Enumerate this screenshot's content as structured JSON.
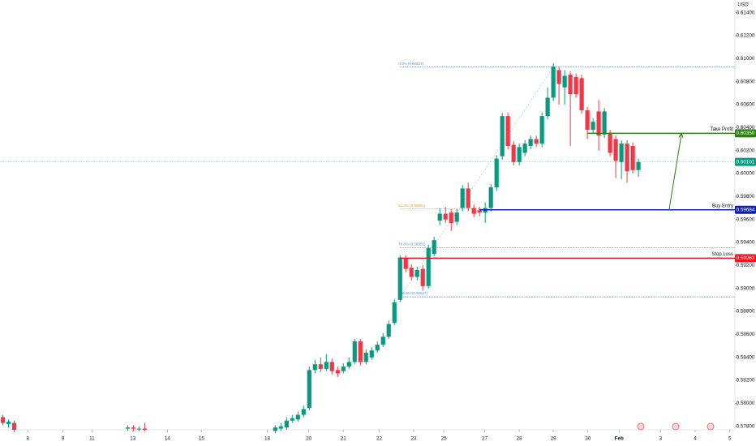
{
  "chart_data": {
    "type": "candlestick",
    "currency": "USD",
    "up_color": "#089981",
    "down_color": "#f23645",
    "xlim": [
      -0.5,
      129
    ],
    "ylim": [
      0.5777,
      0.6151
    ],
    "yticks": [
      {
        "value": 0.578,
        "label": "0.57800"
      },
      {
        "value": 0.58,
        "label": "0.58000"
      },
      {
        "value": 0.582,
        "label": "0.58200"
      },
      {
        "value": 0.584,
        "label": "0.58400"
      },
      {
        "value": 0.586,
        "label": "0.58600"
      },
      {
        "value": 0.588,
        "label": "0.58800"
      },
      {
        "value": 0.59,
        "label": "0.59000"
      },
      {
        "value": 0.592,
        "label": "0.59200"
      },
      {
        "value": 0.594,
        "label": "0.59400"
      },
      {
        "value": 0.596,
        "label": "0.59600"
      },
      {
        "value": 0.598,
        "label": "0.59800"
      },
      {
        "value": 0.6,
        "label": "0.60000"
      },
      {
        "value": 0.602,
        "label": "0.60200"
      },
      {
        "value": 0.604,
        "label": "0.60400"
      },
      {
        "value": 0.606,
        "label": "0.60600"
      },
      {
        "value": 0.608,
        "label": "0.60800"
      },
      {
        "value": 0.61,
        "label": "0.61000"
      },
      {
        "value": 0.612,
        "label": "0.61200"
      },
      {
        "value": 0.614,
        "label": "0.61400"
      }
    ],
    "xticks": [
      {
        "value": 4.4,
        "label": "8"
      },
      {
        "value": 10.6,
        "label": "9"
      },
      {
        "value": 15.7,
        "label": "11"
      },
      {
        "value": 22.9,
        "label": "13"
      },
      {
        "value": 29,
        "label": "14"
      },
      {
        "value": 35,
        "label": "15"
      },
      {
        "value": 46.6,
        "label": "18"
      },
      {
        "value": 53.9,
        "label": "20"
      },
      {
        "value": 60,
        "label": "21"
      },
      {
        "value": 66.3,
        "label": "22"
      },
      {
        "value": 72.4,
        "label": "23"
      },
      {
        "value": 77.7,
        "label": "25"
      },
      {
        "value": 84.9,
        "label": "27"
      },
      {
        "value": 91,
        "label": "28"
      },
      {
        "value": 97,
        "label": "29"
      },
      {
        "value": 103.1,
        "label": "30"
      },
      {
        "value": 108.6,
        "label": "Feb"
      },
      {
        "value": 115.9,
        "label": "3"
      },
      {
        "value": 122,
        "label": "4"
      },
      {
        "value": 128.1,
        "label": "5"
      }
    ],
    "x": [
      0,
      1,
      2,
      22,
      23,
      24,
      25,
      48,
      49,
      50,
      51,
      52,
      53,
      54,
      55,
      56,
      57,
      58,
      59,
      60,
      61,
      62,
      63,
      64,
      65,
      66,
      67,
      68,
      69,
      70,
      71,
      72,
      73,
      74,
      75,
      76,
      77,
      78,
      79,
      80,
      81,
      82,
      83,
      84,
      85,
      86,
      87,
      88,
      89,
      90,
      91,
      92,
      93,
      94,
      95,
      96,
      97,
      98,
      99,
      100,
      101,
      102,
      103,
      104,
      105,
      106,
      107,
      108,
      109,
      110,
      111,
      112
    ],
    "open": [
      0.5788,
      0.5782,
      0.5783,
      0.5778,
      0.5779,
      0.5778,
      0.5778,
      0.5776,
      0.5778,
      0.5779,
      0.5785,
      0.5786,
      0.579,
      0.5796,
      0.5829,
      0.5834,
      0.583,
      0.5836,
      0.5829,
      0.5828,
      0.5832,
      0.5836,
      0.5854,
      0.5836,
      0.584,
      0.5846,
      0.5851,
      0.5858,
      0.587,
      0.589,
      0.5926,
      0.5918,
      0.591,
      0.5917,
      0.5902,
      0.593,
      0.5959,
      0.5965,
      0.5966,
      0.5958,
      0.597,
      0.5987,
      0.597,
      0.5968,
      0.5966,
      0.597,
      0.5988,
      0.6015,
      0.605,
      0.6025,
      0.601,
      0.6018,
      0.6024,
      0.603,
      0.6026,
      0.605,
      0.6066,
      0.609,
      0.6075,
      0.6086,
      0.6084,
      0.6083,
      0.6055,
      0.6038,
      0.6054,
      0.6034,
      0.6035,
      0.603,
      0.601,
      0.6026,
      0.6024,
      0.6003
    ],
    "high": [
      0.579,
      0.5786,
      0.5785,
      0.5781,
      0.5781,
      0.578,
      0.5783,
      0.5781,
      0.5783,
      0.5788,
      0.579,
      0.5793,
      0.5798,
      0.5832,
      0.5838,
      0.584,
      0.5843,
      0.5839,
      0.5832,
      0.5835,
      0.584,
      0.5856,
      0.5856,
      0.5847,
      0.5849,
      0.5854,
      0.5861,
      0.5872,
      0.5891,
      0.5929,
      0.5929,
      0.5921,
      0.5919,
      0.592,
      0.5938,
      0.5945,
      0.597,
      0.5971,
      0.5969,
      0.5969,
      0.599,
      0.5992,
      0.5973,
      0.5971,
      0.5975,
      0.5991,
      0.6016,
      0.6053,
      0.6053,
      0.6028,
      0.6026,
      0.6029,
      0.6033,
      0.6033,
      0.6053,
      0.6075,
      0.6096,
      0.6093,
      0.609,
      0.6089,
      0.6087,
      0.6086,
      0.6058,
      0.6048,
      0.6064,
      0.6057,
      0.6038,
      0.6033,
      0.6029,
      0.6029,
      0.6027,
      0.6013
    ],
    "low": [
      0.5781,
      0.5779,
      0.5775,
      0.5776,
      0.5776,
      0.5776,
      0.5776,
      0.5774,
      0.5776,
      0.5777,
      0.5783,
      0.5784,
      0.5788,
      0.5794,
      0.5826,
      0.5827,
      0.5828,
      0.5825,
      0.5823,
      0.5826,
      0.583,
      0.5834,
      0.5833,
      0.5834,
      0.5838,
      0.5844,
      0.5849,
      0.5856,
      0.5868,
      0.5888,
      0.5914,
      0.5907,
      0.5907,
      0.5898,
      0.59,
      0.5928,
      0.5955,
      0.5957,
      0.595,
      0.5955,
      0.5967,
      0.5967,
      0.5962,
      0.5963,
      0.5957,
      0.5967,
      0.5985,
      0.6012,
      0.6021,
      0.6007,
      0.6007,
      0.6015,
      0.6021,
      0.6023,
      0.6023,
      0.6047,
      0.6063,
      0.606,
      0.606,
      0.6024,
      0.6066,
      0.6052,
      0.603,
      0.6035,
      0.602,
      0.6031,
      0.6015,
      0.5996,
      0.5995,
      0.5992,
      0.6,
      0.5997
    ],
    "close": [
      0.5783,
      0.5784,
      0.5777,
      0.5779,
      0.5778,
      0.5778,
      0.5777,
      0.5779,
      0.578,
      0.5785,
      0.5787,
      0.579,
      0.5795,
      0.5829,
      0.5834,
      0.583,
      0.5836,
      0.5828,
      0.5826,
      0.5832,
      0.5836,
      0.5854,
      0.5836,
      0.5844,
      0.5846,
      0.5851,
      0.5858,
      0.5869,
      0.5888,
      0.5927,
      0.5917,
      0.591,
      0.5916,
      0.5902,
      0.5935,
      0.5942,
      0.5965,
      0.596,
      0.5957,
      0.5966,
      0.5987,
      0.597,
      0.5965,
      0.5966,
      0.597,
      0.5988,
      0.6013,
      0.605,
      0.6024,
      0.601,
      0.6023,
      0.6026,
      0.603,
      0.6026,
      0.605,
      0.6066,
      0.6093,
      0.6078,
      0.6085,
      0.6069,
      0.6069,
      0.6055,
      0.6038,
      0.6045,
      0.6033,
      0.6054,
      0.6018,
      0.6011,
      0.6026,
      0.6002,
      0.6003,
      0.601
    ],
    "current_price": {
      "value": 0.60101,
      "label": "0.60101",
      "color": "#089981"
    },
    "levels": [
      {
        "name": "Take Profit",
        "value": 0.6035,
        "label": "0.60350",
        "color": "#2e7d14",
        "from": 103
      },
      {
        "name": "Buy Entry",
        "value": 0.59684,
        "label": "0.59684",
        "color": "#0d1fa8",
        "from": 84
      },
      {
        "name": "Stop Loss",
        "value": 0.59263,
        "label": "0.59263",
        "color": "#f0141e",
        "from": 70
      }
    ],
    "fib_levels": [
      {
        "label": "0.0% (0.60927)",
        "value": 0.60927,
        "color": "#5b8fd6",
        "from": 70,
        "to": 129
      },
      {
        "label": "61.8% (0.59691)",
        "value": 0.59691,
        "color": "#e09a3a",
        "from": 70,
        "to": 85
      },
      {
        "label": "78.6% (0.59355)",
        "value": 0.59355,
        "color": "#5b8fd6",
        "from": 70,
        "to": 129
      },
      {
        "label": "100.0% (0.58927)",
        "value": 0.58927,
        "color": "#5b8fd6",
        "from": 70,
        "to": 129
      }
    ]
  }
}
